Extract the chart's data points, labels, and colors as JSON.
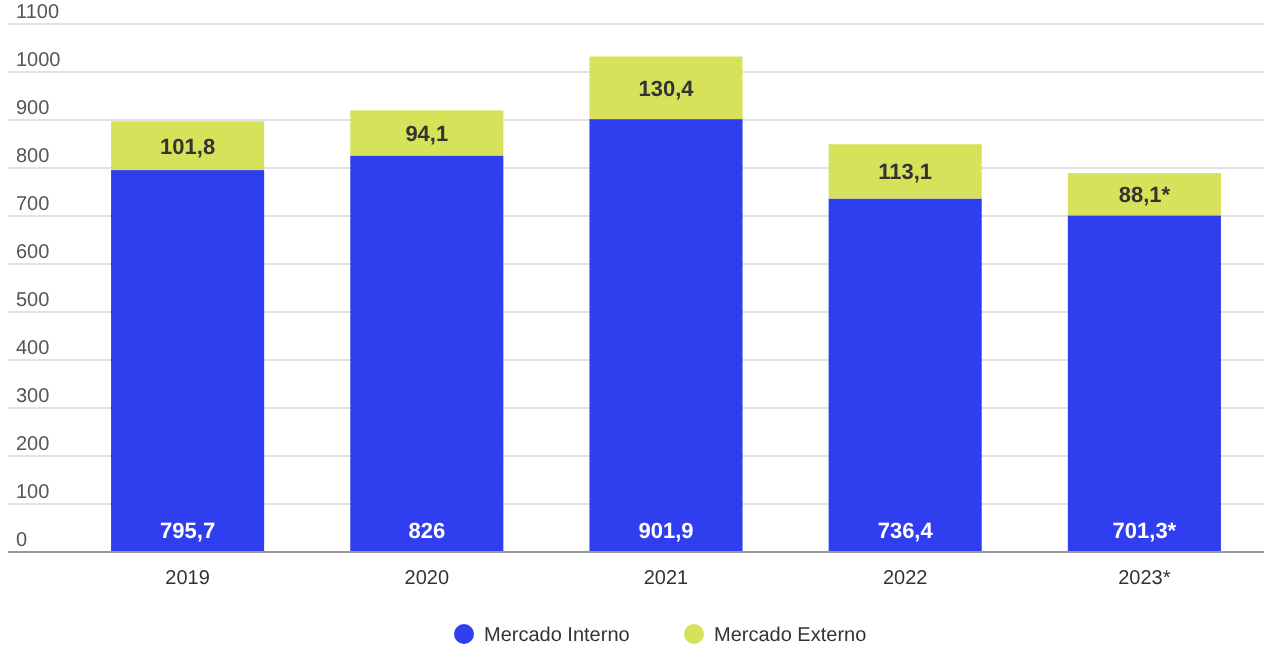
{
  "chart_data": {
    "type": "bar",
    "stacked": true,
    "categories": [
      "2019",
      "2020",
      "2021",
      "2022",
      "2023*"
    ],
    "series": [
      {
        "name": "Mercado Interno",
        "color": "#2f3ff0",
        "values": [
          795.7,
          826,
          901.9,
          736.4,
          701.3
        ],
        "value_labels": [
          "795,7",
          "826",
          "901,9",
          "736,4",
          "701,3*"
        ]
      },
      {
        "name": "Mercado Externo",
        "color": "#d6e35a",
        "values": [
          101.8,
          94.1,
          130.4,
          113.1,
          88.1
        ],
        "value_labels": [
          "101,8",
          "94,1",
          "130,4",
          "113,1",
          "88,1*"
        ]
      }
    ],
    "ylim": [
      0,
      1100
    ],
    "yticks": [
      0,
      100,
      200,
      300,
      400,
      500,
      600,
      700,
      800,
      900,
      1000,
      1100
    ],
    "grid": "y",
    "legend": "bottom"
  }
}
